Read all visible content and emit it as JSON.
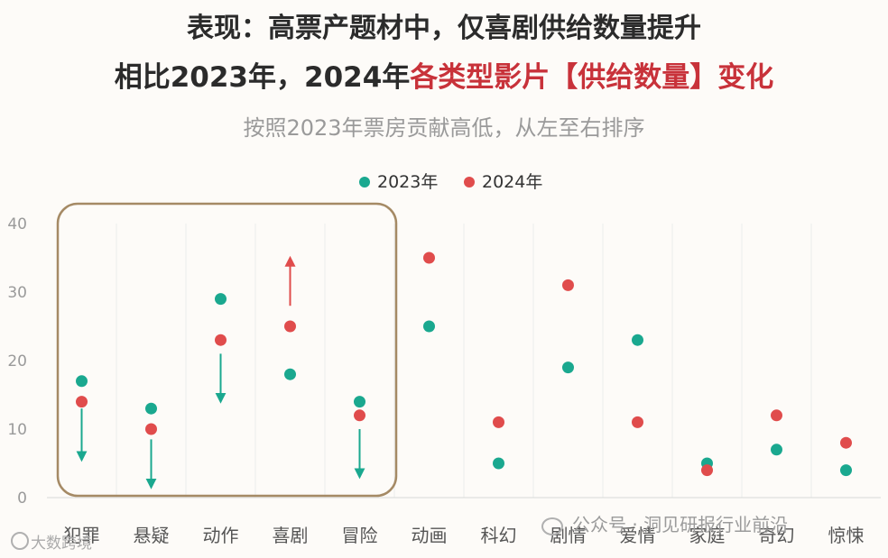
{
  "title_line1": "表现：高票产题材中，仅喜剧供给数量提升",
  "title_line2_prefix": "相比2023年，2024年",
  "title_line2_highlight": "各类型影片【供给数量】变化",
  "subtitle": "按照2023年票房贡献高低，从左至右排序",
  "watermark_right": "公众号 · 洞见研报行业前沿",
  "watermark_left": "大数跨境",
  "colors": {
    "series_2023": "#1aa88f",
    "series_2024": "#e04c4c",
    "highlight_box": "#a58a65",
    "title_highlight": "#c8323a"
  },
  "chart_data": {
    "type": "scatter",
    "categories": [
      "犯罪",
      "悬疑",
      "动作",
      "喜剧",
      "冒险",
      "动画",
      "科幻",
      "剧情",
      "爱情",
      "家庭",
      "奇幻",
      "惊悚"
    ],
    "series": [
      {
        "name": "2023年",
        "values": [
          17,
          13,
          29,
          18,
          14,
          25,
          5,
          19,
          23,
          5,
          7,
          4
        ]
      },
      {
        "name": "2024年",
        "values": [
          14,
          10,
          23,
          25,
          12,
          35,
          11,
          31,
          11,
          4,
          12,
          8
        ]
      }
    ],
    "yticks": [
      0,
      10,
      20,
      30,
      40
    ],
    "ylim": [
      0,
      40
    ],
    "grid": true,
    "legend_position": "top-center",
    "highlight_box_categories": [
      "犯罪",
      "悬疑",
      "动作",
      "喜剧",
      "冒险"
    ],
    "arrows": [
      {
        "category": "犯罪",
        "direction": "down",
        "from": 13,
        "to": 6,
        "color": "teal"
      },
      {
        "category": "悬疑",
        "direction": "down",
        "from": 8.5,
        "to": 2,
        "color": "teal"
      },
      {
        "category": "动作",
        "direction": "down",
        "from": 21,
        "to": 14.5,
        "color": "teal"
      },
      {
        "category": "喜剧",
        "direction": "up",
        "from": 28,
        "to": 34.5,
        "color": "red"
      },
      {
        "category": "冒险",
        "direction": "down",
        "from": 10,
        "to": 3.5,
        "color": "teal"
      }
    ]
  }
}
